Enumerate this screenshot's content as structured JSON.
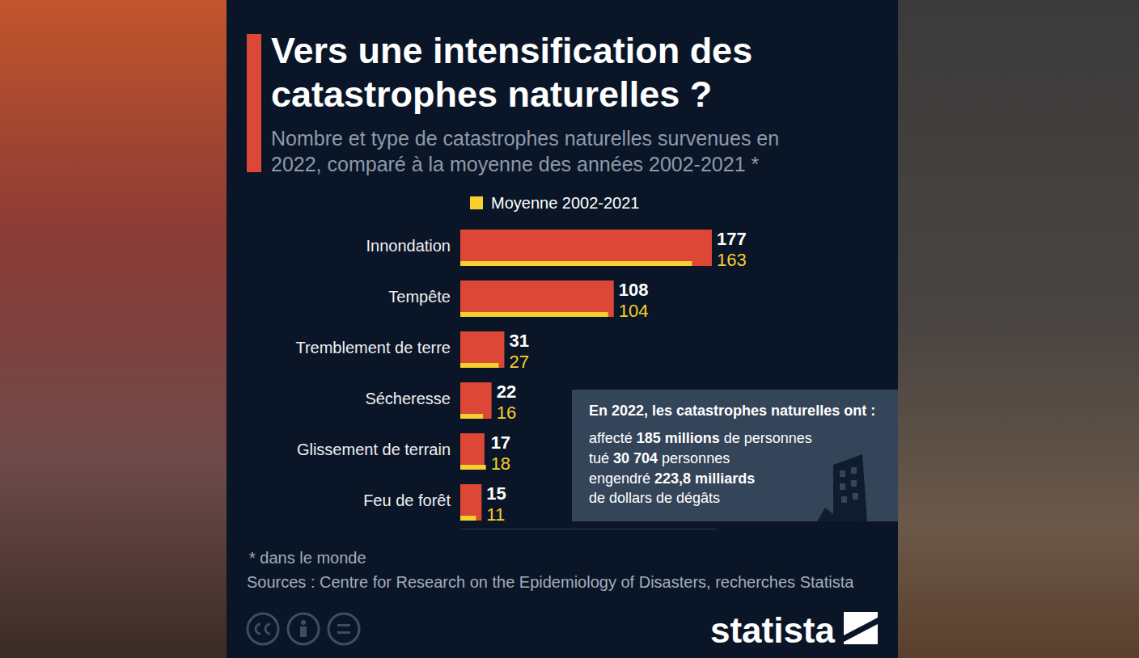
{
  "chart_data": {
    "type": "bar",
    "orientation": "horizontal",
    "title": "Vers une intensification des catastrophes naturelles ?",
    "subtitle": "Nombre et type de catastrophes naturelles survenues en 2022, comparé à la moyenne des années 2002-2021 *",
    "categories": [
      "Innondation",
      "Tempête",
      "Tremblement de terre",
      "Sécheresse",
      "Glissement de terrain",
      "Feu de forêt"
    ],
    "series": [
      {
        "color": "#dc4736",
        "values": [
          177,
          108,
          31,
          22,
          17,
          15
        ]
      },
      {
        "name": "Moyenne 2002-2021",
        "color": "#f7cf2e",
        "values": [
          163,
          104,
          27,
          16,
          18,
          11
        ]
      }
    ],
    "xlim": [
      0,
      180
    ],
    "xticks": [],
    "tick_labels": "y",
    "grid": false,
    "legend": "top",
    "data_labels": true,
    "annotations": [
      {
        "title": "En 2022, les catastrophes naturelles ont :",
        "lines": [
          {
            "before": "affecté ",
            "highlight": "185 millions",
            "after": " de personnes"
          },
          {
            "before": "tué ",
            "highlight": "30 704",
            "after": " personnes"
          },
          {
            "before": "engendré ",
            "highlight": "223,8 milliards",
            "after": " de dollars de dégâts"
          }
        ]
      }
    ],
    "footnote": "* dans le monde",
    "source": "Sources : Centre for Research on the Epidemiology of Disasters, recherches Statista",
    "brand": "statista"
  }
}
